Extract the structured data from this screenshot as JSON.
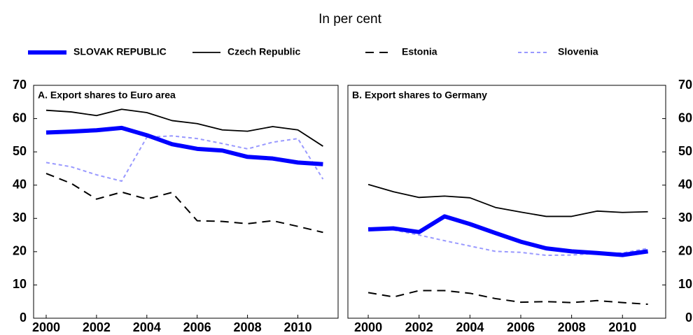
{
  "title": "In per cent",
  "chart_data": [
    {
      "type": "line",
      "title": "A. Export shares to Euro area",
      "x": [
        2000,
        2001,
        2002,
        2003,
        2004,
        2005,
        2006,
        2007,
        2008,
        2009,
        2010,
        2011
      ],
      "xlim": [
        1999.5,
        2011.6
      ],
      "xticks": [
        2000,
        2002,
        2004,
        2006,
        2008,
        2010
      ],
      "ylim": [
        0,
        70
      ],
      "yticks": [
        0,
        10,
        20,
        30,
        40,
        50,
        60,
        70
      ],
      "y_axis_side": "left",
      "series": [
        {
          "name": "SLOVAK REPUBLIC",
          "color": "#0000ff",
          "values": [
            55.8,
            56.1,
            56.5,
            57.2,
            55,
            52.3,
            50.9,
            50.4,
            48.5,
            48,
            46.8,
            46.3
          ]
        },
        {
          "name": "Czech Republic",
          "color": "#000000",
          "values": [
            62.5,
            62,
            60.9,
            62.8,
            61.8,
            59.4,
            58.5,
            56.6,
            56.2,
            57.6,
            56.6,
            51.7
          ]
        },
        {
          "name": "Estonia",
          "color": "#000000",
          "values": [
            43.5,
            40.5,
            35.8,
            37.9,
            35.8,
            37.8,
            29.3,
            29.1,
            28.4,
            29.3,
            27.6,
            25.8
          ]
        },
        {
          "name": "Slovenia",
          "color": "#9999ff",
          "values": [
            46.8,
            45.5,
            43.1,
            41.2,
            54.4,
            54.8,
            54,
            52.5,
            50.9,
            52.9,
            54,
            41.8
          ]
        }
      ]
    },
    {
      "type": "line",
      "title": "B. Export shares to Germany",
      "x": [
        2000,
        2001,
        2002,
        2003,
        2004,
        2005,
        2006,
        2007,
        2008,
        2009,
        2010,
        2011
      ],
      "xlim": [
        1999.2,
        2011.7
      ],
      "xticks": [
        2000,
        2002,
        2004,
        2006,
        2008,
        2010
      ],
      "ylim": [
        0,
        70
      ],
      "yticks": [
        0,
        10,
        20,
        30,
        40,
        50,
        60,
        70
      ],
      "y_axis_side": "right",
      "series": [
        {
          "name": "SLOVAK REPUBLIC",
          "color": "#0000ff",
          "values": [
            26.7,
            27,
            25.9,
            30.6,
            28.3,
            25.6,
            23,
            21,
            20.1,
            19.6,
            19,
            20.1
          ]
        },
        {
          "name": "Czech Republic",
          "color": "#000000",
          "values": [
            40.2,
            38,
            36.3,
            36.7,
            36.2,
            33.3,
            31.9,
            30.6,
            30.6,
            32.2,
            31.8,
            32
          ]
        },
        {
          "name": "Estonia",
          "color": "#000000",
          "values": [
            7.7,
            6.4,
            8.3,
            8.3,
            7.5,
            5.9,
            4.8,
            5,
            4.7,
            5.3,
            4.7,
            4.2
          ]
        },
        {
          "name": "Slovenia",
          "color": "#9999ff",
          "values": [
            27.2,
            26.5,
            25,
            23.3,
            21.7,
            20.1,
            19.8,
            18.9,
            19,
            19.5,
            19.6,
            21
          ]
        }
      ]
    }
  ]
}
